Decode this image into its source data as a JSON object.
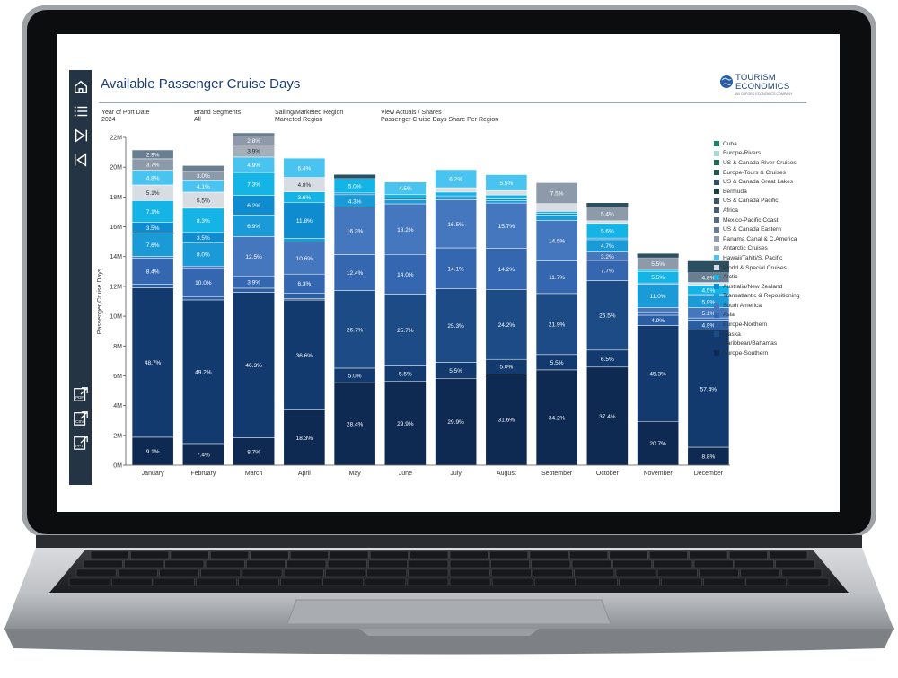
{
  "app": {
    "title": "Available Passenger Cruise Days",
    "logo_line1": "TOURISM",
    "logo_line2": "ECONOMICS",
    "logo_tagline": "AN OXFORD ECONOMICS COMPANY"
  },
  "filters": [
    {
      "label": "Year of Port Date",
      "value": "2024"
    },
    {
      "label": "Brand Segments",
      "value": "All"
    },
    {
      "label": "Sailing/Marketed Region",
      "value": "Marketed Region"
    },
    {
      "label": "View Actuals / Shares",
      "value": "Passenger Cruise Days Share Per Region"
    }
  ],
  "sidebar": {
    "icons": [
      "home-icon",
      "list-icon",
      "skip-forward-icon",
      "skip-back-icon"
    ],
    "exports": [
      {
        "name": "pdf-export-icon",
        "label": "PDF"
      },
      {
        "name": "csv-export-icon",
        "label": "CSV"
      },
      {
        "name": "ppt-export-icon",
        "label": "PPT"
      }
    ]
  },
  "colors": {
    "sidebar": "#253445",
    "title": "#1d3f73"
  },
  "chart_data": {
    "type": "bar",
    "stacked": true,
    "ylabel": "Passenger Cruise Days",
    "xlabel": "",
    "ylim": [
      0,
      22000000
    ],
    "yticks": [
      {
        "v": 0,
        "label": "0M"
      },
      {
        "v": 2000000,
        "label": "2M"
      },
      {
        "v": 4000000,
        "label": "4M"
      },
      {
        "v": 6000000,
        "label": "6M"
      },
      {
        "v": 8000000,
        "label": "8M"
      },
      {
        "v": 10000000,
        "label": "10M"
      },
      {
        "v": 12000000,
        "label": "12M"
      },
      {
        "v": 14000000,
        "label": "14M"
      },
      {
        "v": 16000000,
        "label": "16M"
      },
      {
        "v": 18000000,
        "label": "18M"
      },
      {
        "v": 20000000,
        "label": "20M"
      },
      {
        "v": 22000000,
        "label": "22M"
      }
    ],
    "legend_position": "right",
    "categories": [
      "January",
      "February",
      "March",
      "April",
      "May",
      "June",
      "July",
      "August",
      "September",
      "October",
      "November",
      "December"
    ],
    "totals": [
      20600000,
      19600000,
      21100000,
      20200000,
      19500000,
      18800000,
      19500000,
      19400000,
      18700000,
      17600000,
      14200000,
      13700000
    ],
    "series": [
      {
        "name": "Europe-Southern",
        "color": "#0e2a52",
        "shares": [
          9.1,
          7.4,
          8.7,
          18.3,
          28.4,
          29.9,
          29.9,
          31.6,
          34.2,
          37.4,
          20.7,
          8.8
        ]
      },
      {
        "name": "Caribbean/Bahamas",
        "color": "#123a6e",
        "shares": [
          48.7,
          49.2,
          46.3,
          36.6,
          5.0,
          5.5,
          5.5,
          5.0,
          5.5,
          6.5,
          45.3,
          57.4
        ]
      },
      {
        "name": "Alaska",
        "color": "#1c4b85",
        "shares": [
          0,
          0,
          0,
          0.5,
          26.7,
          25.7,
          25.3,
          24.2,
          21.9,
          26.5,
          0,
          0
        ]
      },
      {
        "name": "Europe-Northern",
        "color": "#2a5ea3",
        "shares": [
          1.2,
          1.0,
          1.3,
          1.8,
          0,
          0,
          0,
          0,
          0,
          0,
          4.9,
          4.9
        ]
      },
      {
        "name": "Asia",
        "color": "#3567b0",
        "shares": [
          8.4,
          10.0,
          3.9,
          6.3,
          12.4,
          14.0,
          14.1,
          14.2,
          11.7,
          7.7,
          1.6,
          1.0
        ]
      },
      {
        "name": "South America",
        "color": "#4577be",
        "shares": [
          0.6,
          0.6,
          12.5,
          10.6,
          16.3,
          18.2,
          16.5,
          15.7,
          14.5,
          3.2,
          2.0,
          5.1
        ]
      },
      {
        "name": "Transatlantic & Repositioning",
        "color": "#1a9ad6",
        "shares": [
          7.6,
          8.0,
          6.9,
          1.3,
          4.3,
          1.5,
          0.8,
          0.8,
          2.0,
          4.7,
          11.0,
          5.9
        ]
      },
      {
        "name": "Australia/New Zealand",
        "color": "#0f8ccf",
        "shares": [
          3.5,
          3.5,
          6.2,
          11.8,
          0.6,
          0.6,
          0.6,
          0.6,
          0.6,
          0.6,
          0.6,
          0.5
        ]
      },
      {
        "name": "Arctic",
        "color": "#14b4e6",
        "shares": [
          7.1,
          8.3,
          7.3,
          3.6,
          5.0,
          1.2,
          1.3,
          1.4,
          0.7,
          5.6,
          5.5,
          4.5
        ]
      },
      {
        "name": "World & Special Cruises",
        "color": "#d8dde3",
        "shares": [
          5.1,
          5.5,
          0,
          4.8,
          0,
          0,
          1.5,
          1.5,
          2.8,
          1.0,
          0,
          1.0
        ]
      },
      {
        "name": "Hawaii/Tahiti/S. Pacific",
        "color": "#49c3ef",
        "shares": [
          4.8,
          4.1,
          4.9,
          6.4,
          0,
          4.5,
          6.2,
          5.5,
          0,
          0,
          1.0,
          0.4
        ]
      },
      {
        "name": "Antarctic Cruises",
        "color": "#a5aeb9",
        "shares": [
          0,
          0,
          3.9,
          0,
          0,
          0,
          0,
          0,
          0,
          0,
          0,
          0
        ]
      },
      {
        "name": "Panama Canal & C.America",
        "color": "#8c9aa9",
        "shares": [
          3.7,
          3.0,
          2.8,
          0,
          0,
          0,
          0,
          0,
          7.5,
          5.4,
          5.5,
          0
        ]
      },
      {
        "name": "US & Canada Eastern",
        "color": "#6a7e92",
        "shares": [
          2.9,
          2.0,
          1.0,
          0,
          0,
          0,
          0,
          0,
          0,
          0,
          0,
          4.8
        ]
      },
      {
        "name": "Mexico-Pacific Coast",
        "color": "#586b80",
        "shares": [
          0,
          0,
          0,
          0,
          0,
          0,
          0,
          0,
          0,
          0,
          0,
          0
        ]
      },
      {
        "name": "Africa",
        "color": "#4a5d72",
        "shares": [
          0,
          0,
          0,
          0,
          0,
          0,
          0,
          0,
          0,
          0,
          0,
          0
        ]
      },
      {
        "name": "US & Canada Pacific",
        "color": "#3e5264",
        "shares": [
          0,
          0,
          0,
          0,
          0,
          0,
          0,
          0,
          0,
          0,
          0,
          0
        ]
      },
      {
        "name": "Bermuda",
        "color": "#17413a",
        "shares": [
          0,
          0,
          0,
          0,
          0,
          0,
          0,
          0,
          0,
          0,
          0,
          0
        ]
      },
      {
        "name": "US & Canada Great Lakes",
        "color": "#2c4f62",
        "shares": [
          0,
          0,
          0,
          0,
          0,
          0,
          0,
          0,
          0,
          0,
          0,
          0
        ]
      },
      {
        "name": "Europe-Tours & Cruises",
        "color": "#1f5a4e",
        "shares": [
          0,
          0,
          0,
          0,
          0,
          0,
          0,
          0,
          0,
          0,
          0,
          0
        ]
      },
      {
        "name": "US & Canada River Cruises",
        "color": "#1a6b55",
        "shares": [
          0,
          0,
          0,
          0,
          0,
          0,
          0,
          0,
          0,
          0,
          0,
          0
        ]
      },
      {
        "name": "Europe-Rivers",
        "color": "#a7d8d6",
        "shares": [
          0,
          0,
          0,
          0,
          0,
          0,
          0,
          0,
          0,
          0,
          0,
          0
        ]
      },
      {
        "name": "Cuba",
        "color": "#13876b",
        "shares": [
          0,
          0,
          0,
          0,
          0,
          0,
          0,
          0,
          0,
          0,
          0,
          0
        ]
      }
    ]
  }
}
